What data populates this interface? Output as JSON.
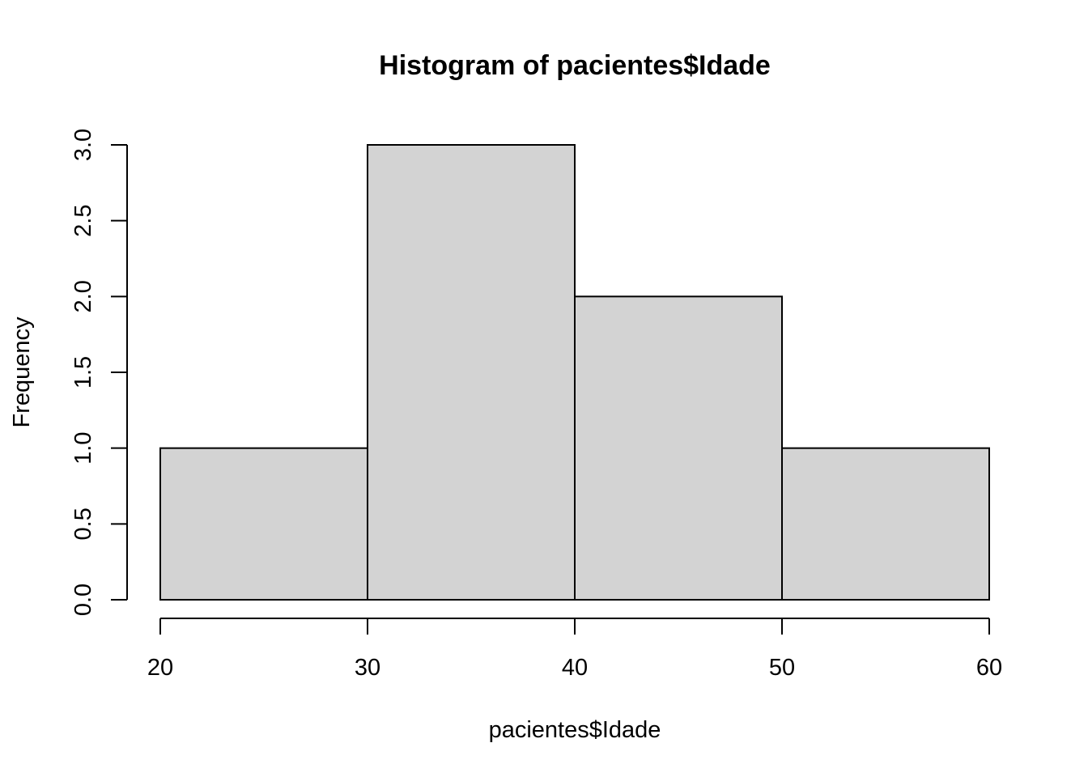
{
  "chart_data": {
    "type": "bar",
    "title": "Histogram of pacientes$Idade",
    "xlabel": "pacientes$Idade",
    "ylabel": "Frequency",
    "bins": [
      {
        "start": 20,
        "end": 30,
        "value": 1
      },
      {
        "start": 30,
        "end": 40,
        "value": 3
      },
      {
        "start": 40,
        "end": 50,
        "value": 2
      },
      {
        "start": 50,
        "end": 60,
        "value": 1
      }
    ],
    "xlim": [
      20,
      60
    ],
    "ylim": [
      0,
      3
    ],
    "x_ticks": [
      20,
      30,
      40,
      50,
      60
    ],
    "x_tick_labels": [
      "20",
      "30",
      "40",
      "50",
      "60"
    ],
    "y_ticks": [
      0,
      0.5,
      1,
      1.5,
      2,
      2.5,
      3
    ],
    "y_tick_labels": [
      "0.0",
      "0.5",
      "1.0",
      "1.5",
      "2.0",
      "2.5",
      "3.0"
    ],
    "bar_fill": "#d3d3d3",
    "grid": false
  }
}
